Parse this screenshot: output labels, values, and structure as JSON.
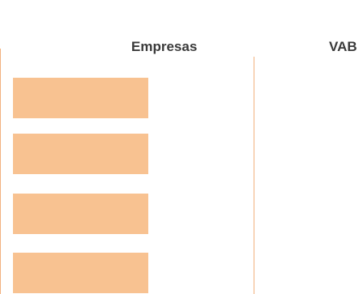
{
  "table": {
    "headers": [
      {
        "label": "Empresas"
      },
      {
        "label": "VAB"
      }
    ],
    "row_count": 4
  },
  "colors": {
    "bar_fill": "#f8c291",
    "divider": "#f2b27f",
    "header_text": "#3a3a3a"
  }
}
